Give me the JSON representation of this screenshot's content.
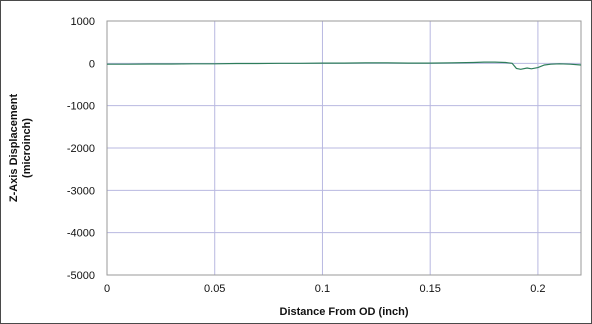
{
  "chart_data": {
    "type": "line",
    "title": "",
    "xlabel": "Distance From OD (inch)",
    "ylabel_lines": [
      "Z-Axis Displacement",
      "(microinch)"
    ],
    "xlim": [
      0,
      0.22
    ],
    "ylim": [
      -5000,
      1000
    ],
    "x_ticks": [
      0,
      0.05,
      0.1,
      0.15,
      0.2
    ],
    "x_tick_labels": [
      "0",
      "0.05",
      "0.1",
      "0.15",
      "0.2"
    ],
    "y_ticks": [
      1000,
      0,
      -1000,
      -2000,
      -3000,
      -4000,
      -5000
    ],
    "y_tick_labels": [
      "1000",
      "0",
      "-1000",
      "-2000",
      "-3000",
      "-4000",
      "-5000"
    ],
    "grid": true,
    "grid_color": "#b8b8e0",
    "series": [
      {
        "color": "#2e7d5b",
        "x": [
          0,
          0.01,
          0.02,
          0.03,
          0.04,
          0.05,
          0.06,
          0.07,
          0.08,
          0.09,
          0.1,
          0.11,
          0.12,
          0.13,
          0.14,
          0.15,
          0.16,
          0.17,
          0.175,
          0.18,
          0.185,
          0.188,
          0.19,
          0.192,
          0.195,
          0.197,
          0.2,
          0.203,
          0.206,
          0.21,
          0.215,
          0.22
        ],
        "y": [
          -20,
          -20,
          -15,
          -15,
          -10,
          -10,
          -5,
          -5,
          0,
          0,
          5,
          5,
          10,
          10,
          5,
          5,
          10,
          20,
          30,
          30,
          20,
          0,
          -120,
          -140,
          -110,
          -130,
          -100,
          -40,
          -20,
          -10,
          -20,
          -40
        ]
      }
    ]
  }
}
